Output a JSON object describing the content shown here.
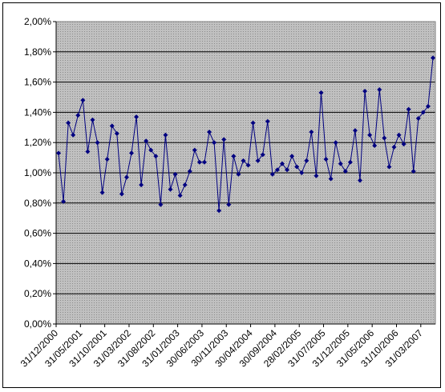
{
  "chart_data": {
    "type": "line",
    "title": "",
    "xlabel": "",
    "ylabel": "",
    "ylim": [
      0,
      0.02
    ],
    "yticks": [
      "0,00%",
      "0,20%",
      "0,40%",
      "0,60%",
      "0,80%",
      "1,00%",
      "1,20%",
      "1,40%",
      "1,60%",
      "1,80%",
      "2,00%"
    ],
    "xticks": [
      {
        "label": "31/12/2000",
        "index": 0
      },
      {
        "label": "31/05/2001",
        "index": 5
      },
      {
        "label": "31/10/2001",
        "index": 10
      },
      {
        "label": "31/03/2002",
        "index": 15
      },
      {
        "label": "31/08/2002",
        "index": 20
      },
      {
        "label": "31/01/2003",
        "index": 25
      },
      {
        "label": "30/06/2003",
        "index": 30
      },
      {
        "label": "30/11/2003",
        "index": 35
      },
      {
        "label": "30/04/2004",
        "index": 40
      },
      {
        "label": "30/09/2004",
        "index": 45
      },
      {
        "label": "28/02/2005",
        "index": 50
      },
      {
        "label": "31/07/2005",
        "index": 55
      },
      {
        "label": "31/12/2005",
        "index": 60
      },
      {
        "label": "31/05/2006",
        "index": 65
      },
      {
        "label": "31/10/2006",
        "index": 70
      },
      {
        "label": "31/03/2007",
        "index": 75
      }
    ],
    "grid": true,
    "legend": "none",
    "colors": {
      "line": "#000080",
      "plot_background": "#c0c0c0",
      "pattern_dots": "#8c8c8c",
      "gridline": "#000000"
    },
    "series": [
      {
        "values": [
          0.0113,
          0.0081,
          0.0133,
          0.0125,
          0.0138,
          0.0148,
          0.0114,
          0.0135,
          0.012,
          0.0087,
          0.0109,
          0.0131,
          0.0126,
          0.0086,
          0.0097,
          0.0113,
          0.0137,
          0.0092,
          0.0121,
          0.0115,
          0.0111,
          0.0079,
          0.0125,
          0.0089,
          0.0099,
          0.0085,
          0.0092,
          0.0101,
          0.0115,
          0.0107,
          0.0107,
          0.0127,
          0.012,
          0.0075,
          0.0122,
          0.0079,
          0.0111,
          0.0099,
          0.0108,
          0.0105,
          0.0133,
          0.0108,
          0.0112,
          0.0134,
          0.0099,
          0.0102,
          0.0106,
          0.0102,
          0.0111,
          0.0104,
          0.01,
          0.0108,
          0.0127,
          0.0098,
          0.0153,
          0.0109,
          0.0096,
          0.012,
          0.0106,
          0.0101,
          0.0107,
          0.0128,
          0.0095,
          0.0154,
          0.0125,
          0.0118,
          0.0155,
          0.0123,
          0.0104,
          0.0117,
          0.0125,
          0.0119,
          0.0142,
          0.0101,
          0.0136,
          0.014,
          0.0144,
          0.0176
        ]
      }
    ]
  }
}
